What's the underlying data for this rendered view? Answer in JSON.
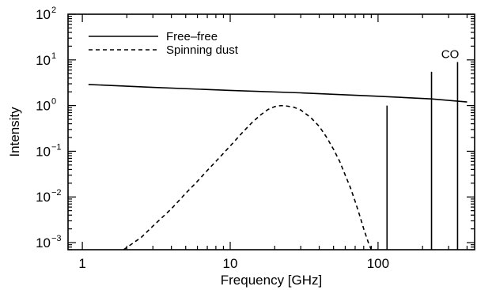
{
  "chart_data": {
    "type": "line",
    "title": "",
    "xlabel": "Frequency [GHz]",
    "ylabel": "Intensity",
    "x_scale": "log",
    "y_scale": "log",
    "xlim": [
      0.8,
      450
    ],
    "ylim": [
      0.0007,
      100
    ],
    "x_ticks": [
      {
        "value": 1,
        "label": "1"
      },
      {
        "value": 10,
        "label": "10"
      },
      {
        "value": 100,
        "label": "100"
      }
    ],
    "y_ticks": [
      {
        "value": 0.001,
        "base": "10",
        "exp": "−3"
      },
      {
        "value": 0.01,
        "base": "10",
        "exp": "−2"
      },
      {
        "value": 0.1,
        "base": "10",
        "exp": "−1"
      },
      {
        "value": 1,
        "base": "10",
        "exp": "0"
      },
      {
        "value": 10,
        "base": "10",
        "exp": "1"
      },
      {
        "value": 100,
        "base": "10",
        "exp": "2"
      }
    ],
    "grid": false,
    "legend_position": "top-left",
    "series": [
      {
        "name": "Free–free",
        "style": "solid",
        "color": "#000000",
        "points": [
          [
            1.1,
            2.9
          ],
          [
            3,
            2.5
          ],
          [
            10,
            2.15
          ],
          [
            30,
            1.9
          ],
          [
            100,
            1.6
          ],
          [
            230,
            1.4
          ],
          [
            400,
            1.2
          ]
        ]
      },
      {
        "name": "Spinning dust",
        "style": "dashed",
        "color": "#000000",
        "points": [
          [
            1.9,
            0.0007
          ],
          [
            2.5,
            0.0013
          ],
          [
            3,
            0.0023
          ],
          [
            4,
            0.0055
          ],
          [
            5,
            0.012
          ],
          [
            6,
            0.022
          ],
          [
            7,
            0.038
          ],
          [
            8,
            0.06
          ],
          [
            10,
            0.13
          ],
          [
            12,
            0.25
          ],
          [
            14,
            0.42
          ],
          [
            16,
            0.62
          ],
          [
            18,
            0.82
          ],
          [
            20,
            0.95
          ],
          [
            22,
            1.0
          ],
          [
            24,
            0.98
          ],
          [
            27,
            0.92
          ],
          [
            30,
            0.8
          ],
          [
            35,
            0.55
          ],
          [
            40,
            0.35
          ],
          [
            45,
            0.2
          ],
          [
            50,
            0.11
          ],
          [
            55,
            0.06
          ],
          [
            60,
            0.03
          ],
          [
            65,
            0.016
          ],
          [
            70,
            0.008
          ],
          [
            75,
            0.004
          ],
          [
            80,
            0.002
          ],
          [
            86,
            0.001
          ],
          [
            90,
            0.0007
          ]
        ]
      }
    ],
    "co_lines": [
      {
        "x": 115,
        "y": 1.0
      },
      {
        "x": 230,
        "y": 5.5
      },
      {
        "x": 345,
        "y": 9.0
      }
    ],
    "annotations": [
      {
        "text": "CO",
        "x": 310,
        "y": 14
      }
    ]
  }
}
